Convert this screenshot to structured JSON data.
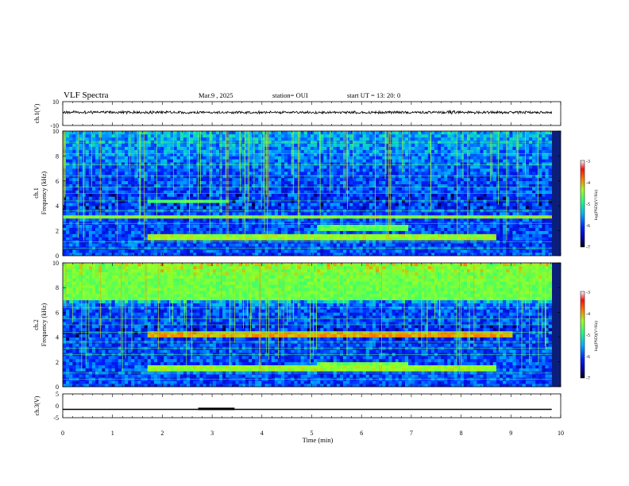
{
  "header": {
    "title": "VLF Spectra",
    "date": "Mar.9  , 2025",
    "station": "station= OUI",
    "start_ut": "start  UT  =   13: 20: 0"
  },
  "chart_data": [
    {
      "type": "line",
      "panel": "ch1-waveform",
      "ylabel": "ch.1(V)",
      "yticks": [
        "10",
        "-10"
      ],
      "ylim": [
        -10,
        10
      ],
      "xlim": [
        0,
        10
      ],
      "baseline": 0,
      "color": "#000000"
    },
    {
      "type": "heatmap",
      "panel": "ch1-spectrogram",
      "ylabel": "ch.1\nFrequency (kHz)",
      "ylabel_lines": [
        "ch.1",
        "Frequency  (kHz)"
      ],
      "yticks": [
        "0",
        "2",
        "4",
        "6",
        "8",
        "10"
      ],
      "ylim": [
        0,
        10
      ],
      "xlim": [
        0,
        10
      ],
      "colorbar": {
        "label": "log(PSD)(V²/Hz)",
        "ticks": [
          "-3",
          "-4",
          "-5",
          "-6",
          "-7"
        ],
        "range": [
          -7,
          -3
        ]
      },
      "features": [
        {
          "kind": "band",
          "f_from": 1.3,
          "f_to": 1.6,
          "t_from": 1.7,
          "t_to": 8.7,
          "level": -4.6
        },
        {
          "kind": "band",
          "f_from": 2.0,
          "f_to": 2.4,
          "t_from": 5.1,
          "t_to": 6.9,
          "level": -4.9
        },
        {
          "kind": "band",
          "f_from": 4.3,
          "f_to": 4.5,
          "t_from": 1.7,
          "t_to": 3.3,
          "level": -4.9
        },
        {
          "kind": "band",
          "f_from": 3.0,
          "f_to": 3.1,
          "t_from": 0.0,
          "t_to": 9.8,
          "level": -4.6
        }
      ]
    },
    {
      "type": "heatmap",
      "panel": "ch2-spectrogram",
      "ylabel": "ch.2\nFrequency (kHz)",
      "ylabel_lines": [
        "ch.2",
        "Frequency  (kHz)"
      ],
      "yticks": [
        "0",
        "2",
        "4",
        "6",
        "8",
        "10"
      ],
      "ylim": [
        0,
        10
      ],
      "xlim": [
        0,
        10
      ],
      "colorbar": {
        "label": "log(PSD)(V²/Hz)",
        "ticks": [
          "-3",
          "-4",
          "-5",
          "-6",
          "-7"
        ],
        "range": [
          -7,
          -3
        ]
      },
      "features": [
        {
          "kind": "band",
          "f_from": 7.0,
          "f_to": 10.0,
          "t_from": 0.0,
          "t_to": 9.8,
          "level": -4.8
        },
        {
          "kind": "band",
          "f_from": 1.3,
          "f_to": 1.6,
          "t_from": 1.7,
          "t_to": 8.7,
          "level": -4.6
        },
        {
          "kind": "band",
          "f_from": 1.5,
          "f_to": 2.0,
          "t_from": 5.1,
          "t_to": 6.9,
          "level": -4.8
        },
        {
          "kind": "band",
          "f_from": 4.0,
          "f_to": 4.3,
          "t_from": 1.7,
          "t_to": 9.0,
          "level": -4.2
        }
      ]
    },
    {
      "type": "line",
      "panel": "ch3-voltage",
      "ylabel": "ch.3(V)",
      "yticks": [
        "5",
        "0",
        "-5"
      ],
      "ylim": [
        -5,
        5
      ],
      "xlim": [
        0,
        10
      ],
      "baseline": -1.5,
      "segments": [
        {
          "t_from": 2.72,
          "t_to": 3.45,
          "value": -1.3
        }
      ],
      "color": "#000000"
    }
  ],
  "x_axis": {
    "label": "Time  (min)",
    "ticks": [
      "0",
      "1",
      "2",
      "3",
      "4",
      "5",
      "6",
      "7",
      "8",
      "9",
      "10"
    ],
    "range": [
      0,
      10
    ]
  }
}
